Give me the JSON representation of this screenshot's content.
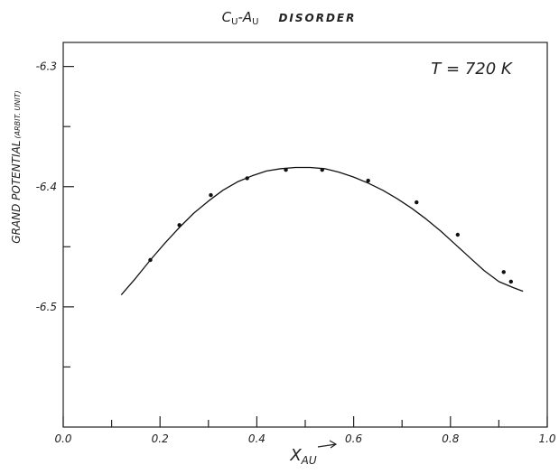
{
  "chart_data": {
    "type": "line",
    "title": "CU-AU DISORDER",
    "title_parts": {
      "element1_main": "C",
      "element1_sub": "U",
      "dash": "-",
      "element2_main": "A",
      "element2_sub": "U",
      "word": "DISORDER"
    },
    "ylabel": "GRAND POTENTIAL",
    "ylabel_unit": "(ARBIT. UNIT)",
    "xlabel_main": "X",
    "xlabel_sub": "AU",
    "annotation": "T = 720 K",
    "xlim": [
      0.0,
      1.0
    ],
    "ylim": [
      -6.6,
      -6.28
    ],
    "x_ticks": [
      0.0,
      0.2,
      0.4,
      0.6,
      0.8,
      1.0
    ],
    "x_tick_labels": [
      "0.0",
      "0.2",
      "0.4",
      "0.6",
      "0.8",
      "1.0"
    ],
    "x_minor_ticks": [
      0.1,
      0.3,
      0.5,
      0.7,
      0.9
    ],
    "y_ticks": [
      -6.3,
      -6.4,
      -6.5
    ],
    "y_tick_labels": [
      "-6.3",
      "-6.4",
      "-6.5"
    ],
    "y_minor_ticks": [
      -6.35,
      -6.45,
      -6.55
    ],
    "grid": false,
    "series": [
      {
        "type": "line",
        "x": [
          0.12,
          0.15,
          0.18,
          0.21,
          0.24,
          0.27,
          0.3,
          0.33,
          0.36,
          0.39,
          0.42,
          0.45,
          0.48,
          0.51,
          0.54,
          0.57,
          0.6,
          0.63,
          0.66,
          0.69,
          0.72,
          0.75,
          0.78,
          0.81,
          0.84,
          0.87,
          0.9,
          0.93,
          0.95
        ],
        "y": [
          -6.49,
          -6.476,
          -6.461,
          -6.447,
          -6.434,
          -6.422,
          -6.412,
          -6.403,
          -6.396,
          -6.391,
          -6.387,
          -6.385,
          -6.384,
          -6.384,
          -6.385,
          -6.388,
          -6.392,
          -6.397,
          -6.403,
          -6.41,
          -6.418,
          -6.427,
          -6.437,
          -6.448,
          -6.459,
          -6.47,
          -6.479,
          -6.484,
          -6.487
        ]
      },
      {
        "type": "scatter",
        "x": [
          0.18,
          0.24,
          0.305,
          0.38,
          0.46,
          0.535,
          0.63,
          0.73,
          0.815,
          0.91,
          0.925
        ],
        "y": [
          -6.461,
          -6.432,
          -6.407,
          -6.393,
          -6.386,
          -6.386,
          -6.395,
          -6.413,
          -6.44,
          -6.471,
          -6.479
        ]
      }
    ]
  }
}
